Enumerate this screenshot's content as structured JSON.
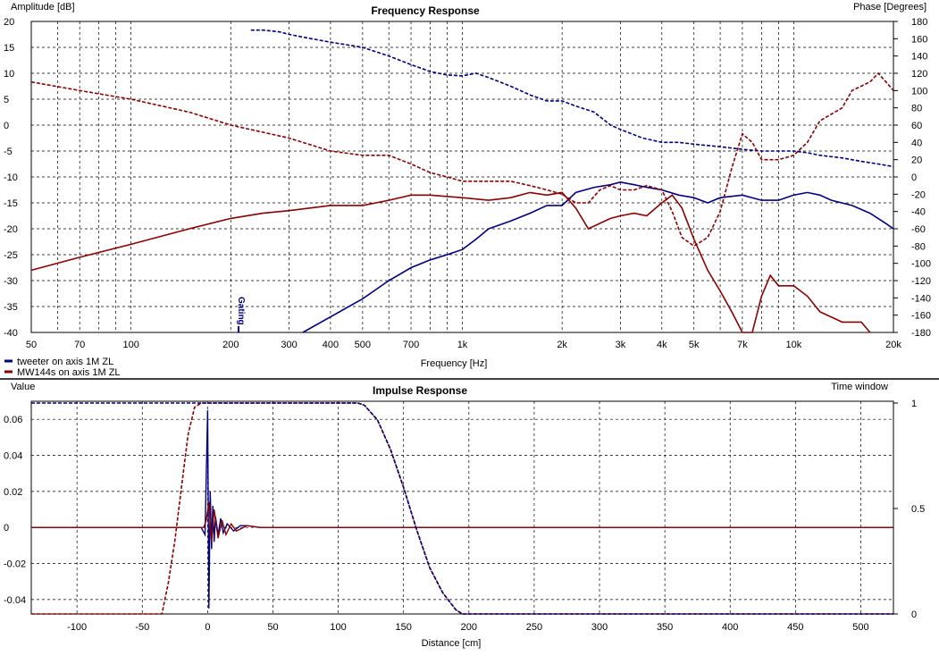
{
  "freq_panel": {
    "title": "Frequency Response",
    "left_axis_title": "Amplitude [dB]",
    "right_axis_title": "Phase [Degrees]",
    "x_axis_title": "Frequency [Hz]",
    "gating_label": "Gating",
    "legend": [
      "tweeter on axis 1M ZL",
      "MW144s on axis 1M ZL"
    ]
  },
  "impulse_panel": {
    "title": "Impulse Response",
    "left_axis_title": "Value",
    "right_axis_title": "Time window",
    "x_axis_title": "Distance [cm]"
  },
  "colors": {
    "tweeter": "#000080",
    "mw144s": "#8b0000",
    "grid": "#000000",
    "window": "#000080"
  },
  "chart_data": [
    {
      "type": "line",
      "title": "Frequency Response",
      "xlabel": "Frequency [Hz]",
      "ylabel": "Amplitude [dB]",
      "y2label": "Phase [Degrees]",
      "xscale": "log",
      "xlim": [
        50,
        20000
      ],
      "ylim": [
        -40,
        20
      ],
      "y2lim": [
        -180,
        180
      ],
      "grid": true,
      "legend_position": "bottom-left",
      "x_ticks": [
        50,
        70,
        100,
        200,
        300,
        400,
        500,
        700,
        1000,
        2000,
        3000,
        4000,
        5000,
        7000,
        10000,
        20000
      ],
      "x_tick_labels": [
        "50",
        "70",
        "100",
        "200",
        "300",
        "400",
        "500",
        "700",
        "1k",
        "2k",
        "3k",
        "4k",
        "5k",
        "7k",
        "10k",
        "20k"
      ],
      "y_ticks": [
        20,
        15,
        10,
        5,
        0,
        -5,
        -10,
        -15,
        -20,
        -25,
        -30,
        -35,
        -40
      ],
      "y2_ticks": [
        180,
        160,
        140,
        120,
        100,
        80,
        60,
        40,
        20,
        0,
        -20,
        -40,
        -60,
        -80,
        -100,
        -120,
        -140,
        -160,
        -180
      ],
      "series": [
        {
          "name": "tweeter on axis 1M ZL",
          "kind": "magnitude",
          "axis": "left",
          "points": [
            [
              330,
              -40
            ],
            [
              400,
              -37
            ],
            [
              500,
              -33.5
            ],
            [
              600,
              -30
            ],
            [
              700,
              -27.5
            ],
            [
              800,
              -26
            ],
            [
              900,
              -25
            ],
            [
              1000,
              -24
            ],
            [
              1100,
              -22
            ],
            [
              1200,
              -20
            ],
            [
              1400,
              -18.5
            ],
            [
              1600,
              -17
            ],
            [
              1800,
              -15.5
            ],
            [
              2000,
              -15.5
            ],
            [
              2200,
              -13
            ],
            [
              2500,
              -12
            ],
            [
              2800,
              -11.5
            ],
            [
              3000,
              -11
            ],
            [
              3300,
              -11.5
            ],
            [
              3600,
              -12
            ],
            [
              4000,
              -12.5
            ],
            [
              4500,
              -13.5
            ],
            [
              5000,
              -14
            ],
            [
              5500,
              -15
            ],
            [
              6000,
              -14
            ],
            [
              7000,
              -13.5
            ],
            [
              8000,
              -14.5
            ],
            [
              9000,
              -14.5
            ],
            [
              10000,
              -13.5
            ],
            [
              11000,
              -13
            ],
            [
              12000,
              -13.5
            ],
            [
              13000,
              -14.5
            ],
            [
              15000,
              -15.5
            ],
            [
              17000,
              -17
            ],
            [
              19000,
              -19
            ],
            [
              20000,
              -20
            ]
          ]
        },
        {
          "name": "tweeter on axis 1M ZL",
          "kind": "phase",
          "axis": "right",
          "points": [
            [
              230,
              170
            ],
            [
              250,
              170
            ],
            [
              280,
              168
            ],
            [
              300,
              165
            ],
            [
              350,
              160
            ],
            [
              400,
              156
            ],
            [
              500,
              150
            ],
            [
              600,
              140
            ],
            [
              700,
              130
            ],
            [
              800,
              122
            ],
            [
              900,
              118
            ],
            [
              1000,
              117
            ],
            [
              1100,
              120
            ],
            [
              1200,
              115
            ],
            [
              1400,
              105
            ],
            [
              1600,
              95
            ],
            [
              1800,
              88
            ],
            [
              2000,
              88
            ],
            [
              2200,
              82
            ],
            [
              2500,
              75
            ],
            [
              2800,
              60
            ],
            [
              3000,
              55
            ],
            [
              3500,
              45
            ],
            [
              4000,
              40
            ],
            [
              4500,
              40
            ],
            [
              5000,
              38
            ],
            [
              6000,
              35
            ],
            [
              7000,
              32
            ],
            [
              8000,
              30
            ],
            [
              9000,
              30
            ],
            [
              10000,
              30
            ],
            [
              11000,
              28
            ],
            [
              12000,
              25
            ],
            [
              14000,
              22
            ],
            [
              16000,
              18
            ],
            [
              18000,
              15
            ],
            [
              20000,
              12
            ]
          ]
        },
        {
          "name": "MW144s on axis 1M ZL",
          "kind": "magnitude",
          "axis": "left",
          "points": [
            [
              50,
              -28
            ],
            [
              70,
              -25.5
            ],
            [
              100,
              -23
            ],
            [
              150,
              -20
            ],
            [
              200,
              -18
            ],
            [
              250,
              -17
            ],
            [
              300,
              -16.5
            ],
            [
              400,
              -15.5
            ],
            [
              500,
              -15.5
            ],
            [
              600,
              -14.5
            ],
            [
              700,
              -13.5
            ],
            [
              800,
              -13.5
            ],
            [
              1000,
              -14
            ],
            [
              1200,
              -14.5
            ],
            [
              1400,
              -14
            ],
            [
              1600,
              -13
            ],
            [
              1800,
              -13.5
            ],
            [
              2000,
              -13
            ],
            [
              2200,
              -16
            ],
            [
              2400,
              -20
            ],
            [
              2800,
              -18
            ],
            [
              3000,
              -17.5
            ],
            [
              3300,
              -17
            ],
            [
              3600,
              -17.5
            ],
            [
              4000,
              -15
            ],
            [
              4300,
              -13.5
            ],
            [
              4600,
              -16
            ],
            [
              5000,
              -22
            ],
            [
              5500,
              -28
            ],
            [
              6000,
              -32
            ],
            [
              6500,
              -36
            ],
            [
              7000,
              -40
            ],
            [
              7500,
              -40
            ],
            [
              8000,
              -33
            ],
            [
              8500,
              -29
            ],
            [
              9000,
              -31
            ],
            [
              10000,
              -31
            ],
            [
              11000,
              -33
            ],
            [
              12000,
              -36
            ],
            [
              14000,
              -38
            ],
            [
              16000,
              -38
            ],
            [
              17000,
              -40
            ]
          ]
        },
        {
          "name": "MW144s on axis 1M ZL",
          "kind": "phase",
          "axis": "right",
          "points": [
            [
              50,
              110
            ],
            [
              70,
              100
            ],
            [
              100,
              90
            ],
            [
              150,
              75
            ],
            [
              200,
              60
            ],
            [
              300,
              45
            ],
            [
              400,
              30
            ],
            [
              500,
              25
            ],
            [
              600,
              25
            ],
            [
              700,
              15
            ],
            [
              800,
              5
            ],
            [
              900,
              0
            ],
            [
              1000,
              -5
            ],
            [
              1200,
              -5
            ],
            [
              1400,
              -5
            ],
            [
              1600,
              -10
            ],
            [
              1800,
              -15
            ],
            [
              2000,
              -20
            ],
            [
              2200,
              -30
            ],
            [
              2400,
              -30
            ],
            [
              2600,
              -15
            ],
            [
              2800,
              -10
            ],
            [
              3000,
              -15
            ],
            [
              3300,
              -15
            ],
            [
              3600,
              -10
            ],
            [
              4000,
              -15
            ],
            [
              4300,
              -40
            ],
            [
              4600,
              -70
            ],
            [
              5000,
              -80
            ],
            [
              5500,
              -70
            ],
            [
              6000,
              -40
            ],
            [
              6500,
              10
            ],
            [
              7000,
              50
            ],
            [
              7500,
              40
            ],
            [
              8000,
              20
            ],
            [
              9000,
              20
            ],
            [
              10000,
              25
            ],
            [
              11000,
              40
            ],
            [
              12000,
              65
            ],
            [
              14000,
              80
            ],
            [
              15000,
              100
            ],
            [
              17000,
              110
            ],
            [
              18000,
              120
            ],
            [
              19000,
              110
            ],
            [
              20000,
              100
            ]
          ]
        }
      ]
    },
    {
      "type": "line",
      "title": "Impulse Response",
      "xlabel": "Distance [cm]",
      "ylabel": "Value",
      "y2label": "Time window",
      "xlim": [
        -135,
        525
      ],
      "ylim": [
        -0.048,
        0.07
      ],
      "y2lim": [
        0,
        1
      ],
      "grid": true,
      "x_ticks": [
        -100,
        -50,
        0,
        50,
        100,
        150,
        200,
        250,
        300,
        350,
        400,
        450,
        500
      ],
      "y_ticks": [
        0.06,
        0.04,
        0.02,
        0,
        -0.02,
        -0.04
      ],
      "y_tick_labels": [
        "0.06",
        "0.04",
        "0.02",
        "0",
        "-0.02",
        "-0.04"
      ],
      "y2_ticks": [
        1,
        0.5,
        0
      ],
      "series": [
        {
          "name": "tweeter on axis 1M ZL",
          "kind": "impulse",
          "axis": "left",
          "points": [
            [
              -135,
              0
            ],
            [
              -5,
              0
            ],
            [
              -2,
              -0.004
            ],
            [
              0,
              0.065
            ],
            [
              1,
              -0.045
            ],
            [
              2,
              0.02
            ],
            [
              3,
              -0.012
            ],
            [
              4,
              0.012
            ],
            [
              5,
              -0.008
            ],
            [
              6,
              0.006
            ],
            [
              8,
              -0.004
            ],
            [
              10,
              0.005
            ],
            [
              12,
              -0.003
            ],
            [
              15,
              0.002
            ],
            [
              20,
              -0.002
            ],
            [
              25,
              0.001
            ],
            [
              30,
              0.001
            ],
            [
              40,
              0
            ],
            [
              525,
              0
            ]
          ]
        },
        {
          "name": "MW144s on axis 1M ZL",
          "kind": "impulse",
          "axis": "left",
          "points": [
            [
              -135,
              0
            ],
            [
              -3,
              0
            ],
            [
              -1,
              0.004
            ],
            [
              1,
              0.014
            ],
            [
              3,
              -0.008
            ],
            [
              5,
              0.01
            ],
            [
              8,
              -0.006
            ],
            [
              11,
              0.004
            ],
            [
              14,
              -0.004
            ],
            [
              18,
              0.002
            ],
            [
              22,
              -0.002
            ],
            [
              30,
              0.001
            ],
            [
              40,
              0
            ],
            [
              525,
              0
            ]
          ]
        },
        {
          "name": "MW144s on axis 1M ZL",
          "kind": "window",
          "axis": "right",
          "points": [
            [
              -135,
              0
            ],
            [
              -35,
              0
            ],
            [
              -30,
              0.15
            ],
            [
              -25,
              0.35
            ],
            [
              -20,
              0.6
            ],
            [
              -15,
              0.85
            ],
            [
              -10,
              0.98
            ],
            [
              -5,
              1
            ],
            [
              5,
              1
            ],
            [
              115,
              1
            ],
            [
              120,
              0.99
            ],
            [
              130,
              0.92
            ],
            [
              140,
              0.78
            ],
            [
              150,
              0.6
            ],
            [
              160,
              0.4
            ],
            [
              170,
              0.22
            ],
            [
              180,
              0.1
            ],
            [
              190,
              0.02
            ],
            [
              195,
              0
            ],
            [
              525,
              0
            ]
          ]
        },
        {
          "name": "tweeter on axis 1M ZL",
          "kind": "window",
          "axis": "right",
          "points": [
            [
              -135,
              1
            ],
            [
              115,
              1
            ],
            [
              120,
              0.99
            ],
            [
              130,
              0.92
            ],
            [
              140,
              0.78
            ],
            [
              150,
              0.6
            ],
            [
              160,
              0.4
            ],
            [
              170,
              0.22
            ],
            [
              180,
              0.1
            ],
            [
              190,
              0.02
            ],
            [
              195,
              0
            ],
            [
              525,
              0
            ]
          ]
        }
      ]
    }
  ]
}
